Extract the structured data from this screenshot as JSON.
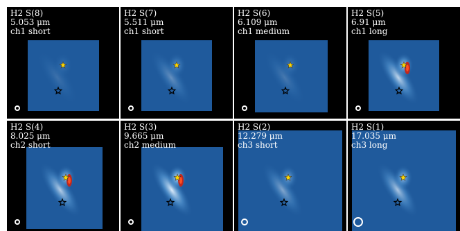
{
  "panels": [
    {
      "line": "H2 S(8)",
      "wavelength": "5.053 μm",
      "channel": "ch1 short"
    },
    {
      "line": "H2 S(7)",
      "wavelength": "5.511 μm",
      "channel": "ch1 short"
    },
    {
      "line": "H2 S(6)",
      "wavelength": "6.109 μm",
      "channel": "ch1 medium"
    },
    {
      "line": "H2 S(5)",
      "wavelength": "6.91 μm",
      "channel": "ch1 long"
    },
    {
      "line": "H2 S(4)",
      "wavelength": "8.025 μm",
      "channel": "ch2 short"
    },
    {
      "line": "H2 S(3)",
      "wavelength": "9.665 μm",
      "channel": "ch2 medium"
    },
    {
      "line": "H2 S(2)",
      "wavelength": "12.279 μm",
      "channel": "ch3 short"
    },
    {
      "line": "H2 S(1)",
      "wavelength": "17.035 μm",
      "channel": "ch3 long"
    }
  ]
}
